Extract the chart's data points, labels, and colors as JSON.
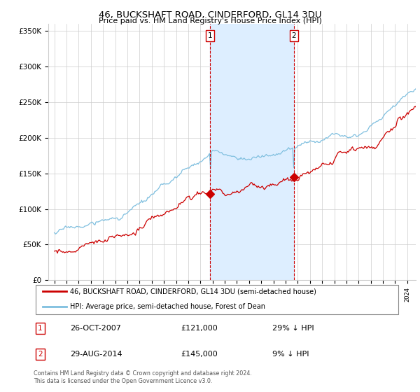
{
  "title": "46, BUCKSHAFT ROAD, CINDERFORD, GL14 3DU",
  "subtitle": "Price paid vs. HM Land Registry's House Price Index (HPI)",
  "ylabel_ticks": [
    "£0",
    "£50K",
    "£100K",
    "£150K",
    "£200K",
    "£250K",
    "£300K",
    "£350K"
  ],
  "ytick_values": [
    0,
    50000,
    100000,
    150000,
    200000,
    250000,
    300000,
    350000
  ],
  "ylim": [
    0,
    360000
  ],
  "hpi_color": "#7fbfdf",
  "price_color": "#cc0000",
  "shade_color": "#ddeeff",
  "legend_line1": "46, BUCKSHAFT ROAD, CINDERFORD, GL14 3DU (semi-detached house)",
  "legend_line2": "HPI: Average price, semi-detached house, Forest of Dean",
  "table_row1_num": "1",
  "table_row1_date": "26-OCT-2007",
  "table_row1_price": "£121,000",
  "table_row1_hpi": "29% ↓ HPI",
  "table_row2_num": "2",
  "table_row2_date": "29-AUG-2014",
  "table_row2_price": "£145,000",
  "table_row2_hpi": "9% ↓ HPI",
  "footer": "Contains HM Land Registry data © Crown copyright and database right 2024.\nThis data is licensed under the Open Government Licence v3.0.",
  "background_color": "#ffffff",
  "grid_color": "#cccccc",
  "xlim_start": 1994.5,
  "xlim_end": 2024.7,
  "sale1_year": 2007.8,
  "sale2_year": 2014.67,
  "sale1_price": 121000,
  "sale2_price": 145000
}
